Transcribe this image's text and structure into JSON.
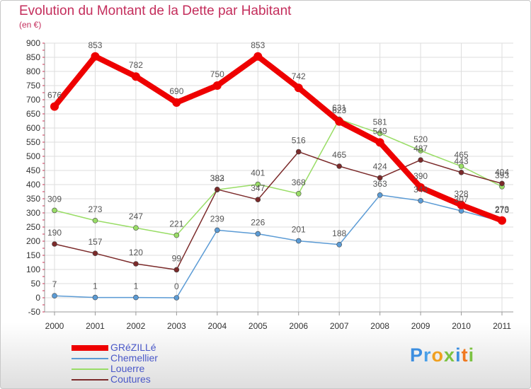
{
  "chart_data": {
    "type": "line",
    "title": "Evolution du Montant de la Dette par Habitant",
    "subtitle": "(en €)",
    "x": [
      "2000",
      "2001",
      "2002",
      "2003",
      "2004",
      "2005",
      "2006",
      "2007",
      "2008",
      "2009",
      "2010",
      "2011"
    ],
    "ylim": [
      -50,
      900
    ],
    "yticks": [
      -50,
      0,
      50,
      100,
      150,
      200,
      250,
      300,
      350,
      400,
      450,
      500,
      550,
      600,
      650,
      700,
      750,
      800,
      850,
      900
    ],
    "grid": true,
    "legend_position": "bottom-left",
    "series": [
      {
        "name": "GRéZILLé",
        "color": "#ee0000",
        "values": [
          676,
          853,
          782,
          690,
          750,
          853,
          742,
          623,
          549,
          390,
          328,
          273
        ]
      },
      {
        "name": "Chemellier",
        "color": "#5b9bd5",
        "values": [
          7,
          1,
          1,
          0,
          239,
          226,
          201,
          188,
          363,
          343,
          307,
          270
        ]
      },
      {
        "name": "Louerre",
        "color": "#99dd66",
        "values": [
          309,
          273,
          247,
          221,
          382,
          401,
          368,
          631,
          581,
          520,
          465,
          393
        ]
      },
      {
        "name": "Coutures",
        "color": "#7b2a2a",
        "values": [
          190,
          157,
          120,
          99,
          383,
          347,
          516,
          465,
          424,
          487,
          443,
          404
        ]
      }
    ]
  },
  "brand": {
    "letters": [
      {
        "ch": "P",
        "color": "#3c8ee0"
      },
      {
        "ch": "r",
        "color": "#4aa0e8"
      },
      {
        "ch": "o",
        "color": "#f0a020"
      },
      {
        "ch": "x",
        "color": "#7cc242"
      },
      {
        "ch": "i",
        "color": "#3c8ee0"
      },
      {
        "ch": "t",
        "color": "#f07820"
      },
      {
        "ch": "i",
        "color": "#7cc242"
      }
    ]
  }
}
